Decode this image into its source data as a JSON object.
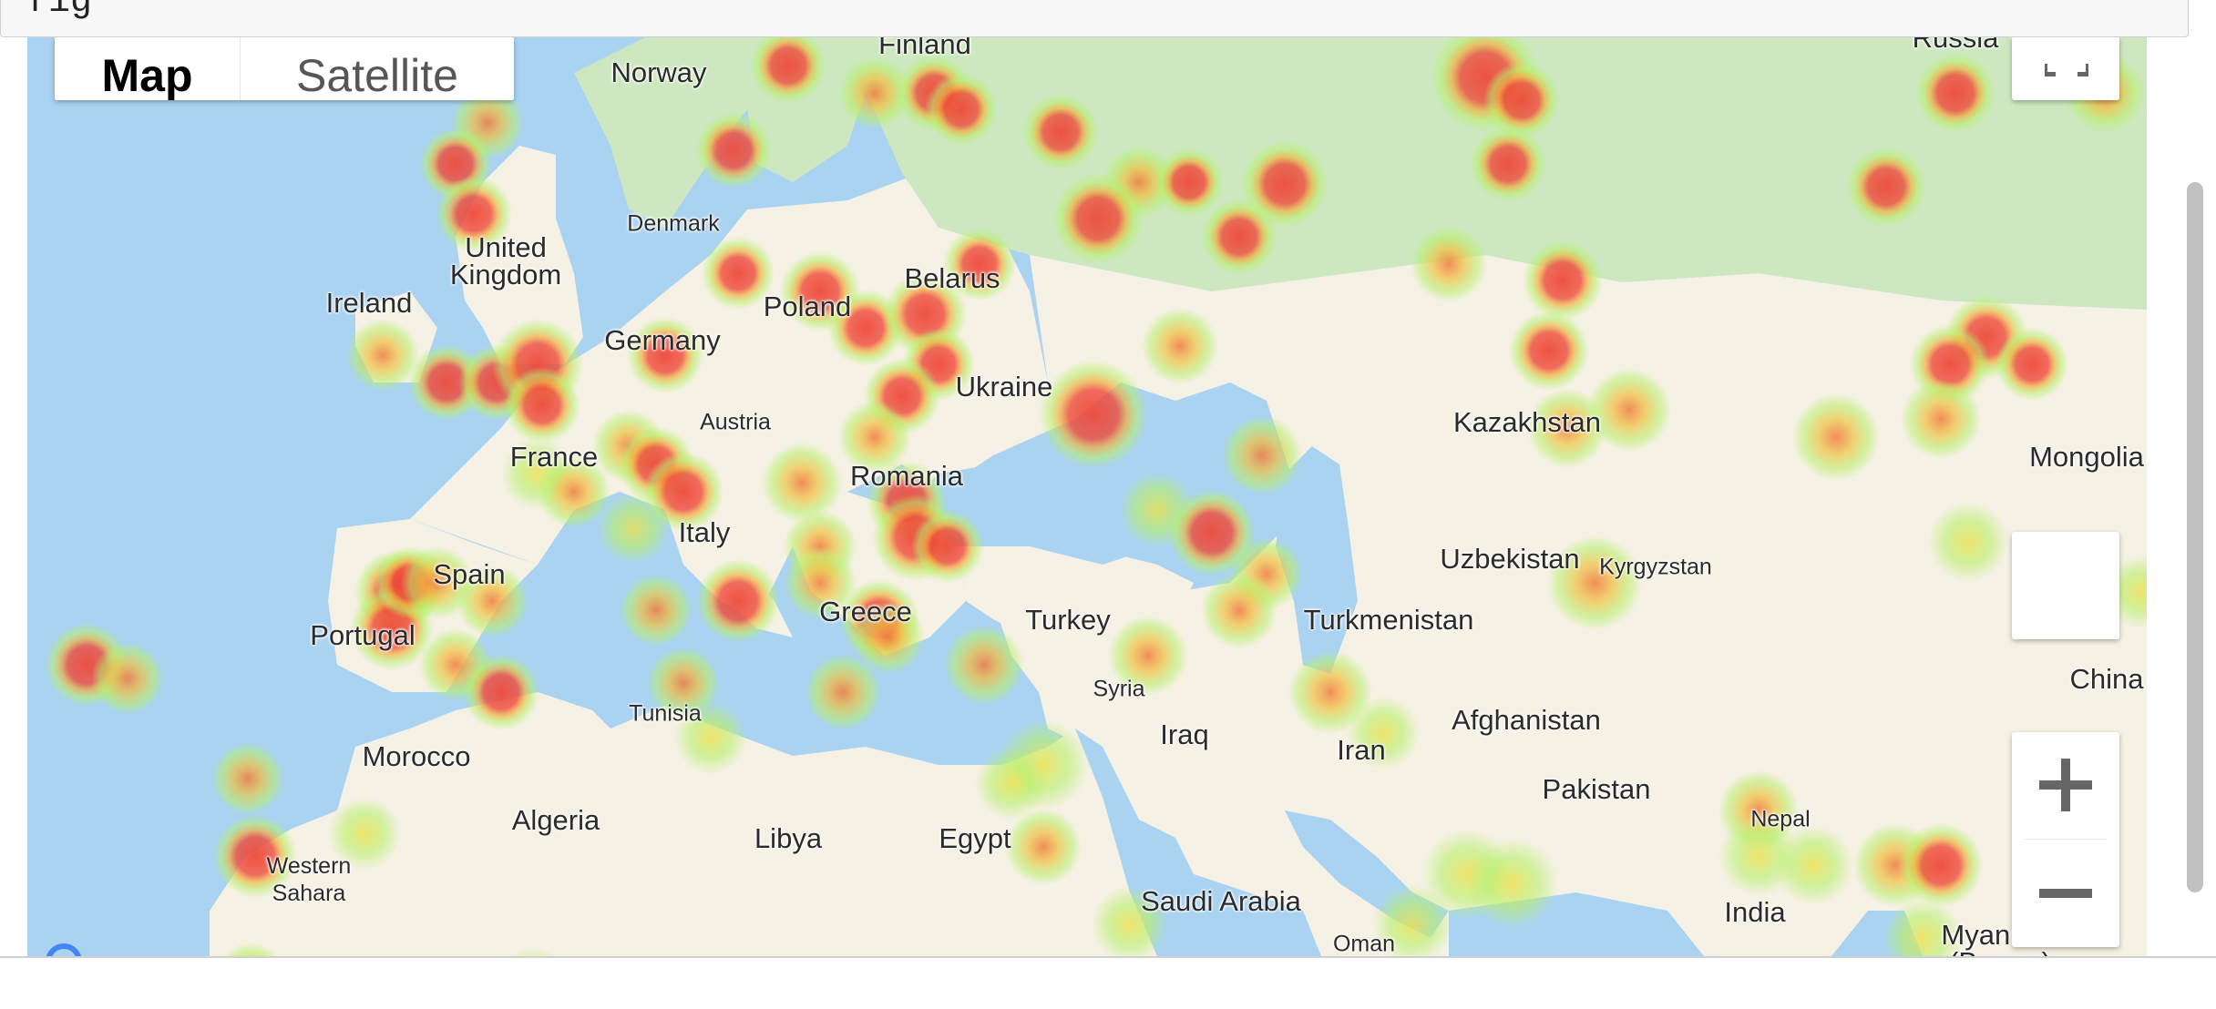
{
  "code_cell": {
    "text": "fig"
  },
  "map_type_control": {
    "map_label": "Map",
    "satellite_label": "Satellite"
  },
  "map": {
    "layer": "heatmap",
    "gradient": [
      "#b8f06a",
      "#f0e04a",
      "#ee4a3a"
    ],
    "water_color": "#aad3f2",
    "land_color": "#f5f1e4",
    "vegetation_color": "#cde8c0"
  },
  "country_labels": {
    "finland": "Finland",
    "norway": "Norway",
    "russia": "Russia",
    "denmark": "Denmark",
    "united_kingdom": "United\nKingdom",
    "ireland": "Ireland",
    "belarus": "Belarus",
    "poland": "Poland",
    "germany": "Germany",
    "ukraine": "Ukraine",
    "austria": "Austria",
    "france": "France",
    "romania": "Romania",
    "kazakhstan": "Kazakhstan",
    "mongolia": "Mongolia",
    "italy": "Italy",
    "uzbekistan": "Uzbekistan",
    "kyrgyzstan": "Kyrgyzstan",
    "spain": "Spain",
    "greece": "Greece",
    "turkey": "Turkey",
    "turkmenistan": "Turkmenistan",
    "portugal": "Portugal",
    "china": "China",
    "syria": "Syria",
    "tunisia": "Tunisia",
    "morocco": "Morocco",
    "iraq": "Iraq",
    "afghanistan": "Afghanistan",
    "iran": "Iran",
    "pakistan": "Pakistan",
    "algeria": "Algeria",
    "libya": "Libya",
    "egypt": "Egypt",
    "nepal": "Nepal",
    "western_sahara": "Western\nSahara",
    "saudi_arabia": "Saudi Arabia",
    "india": "India",
    "oman": "Oman",
    "myanmar": "Myanmar\n(Burma)"
  }
}
